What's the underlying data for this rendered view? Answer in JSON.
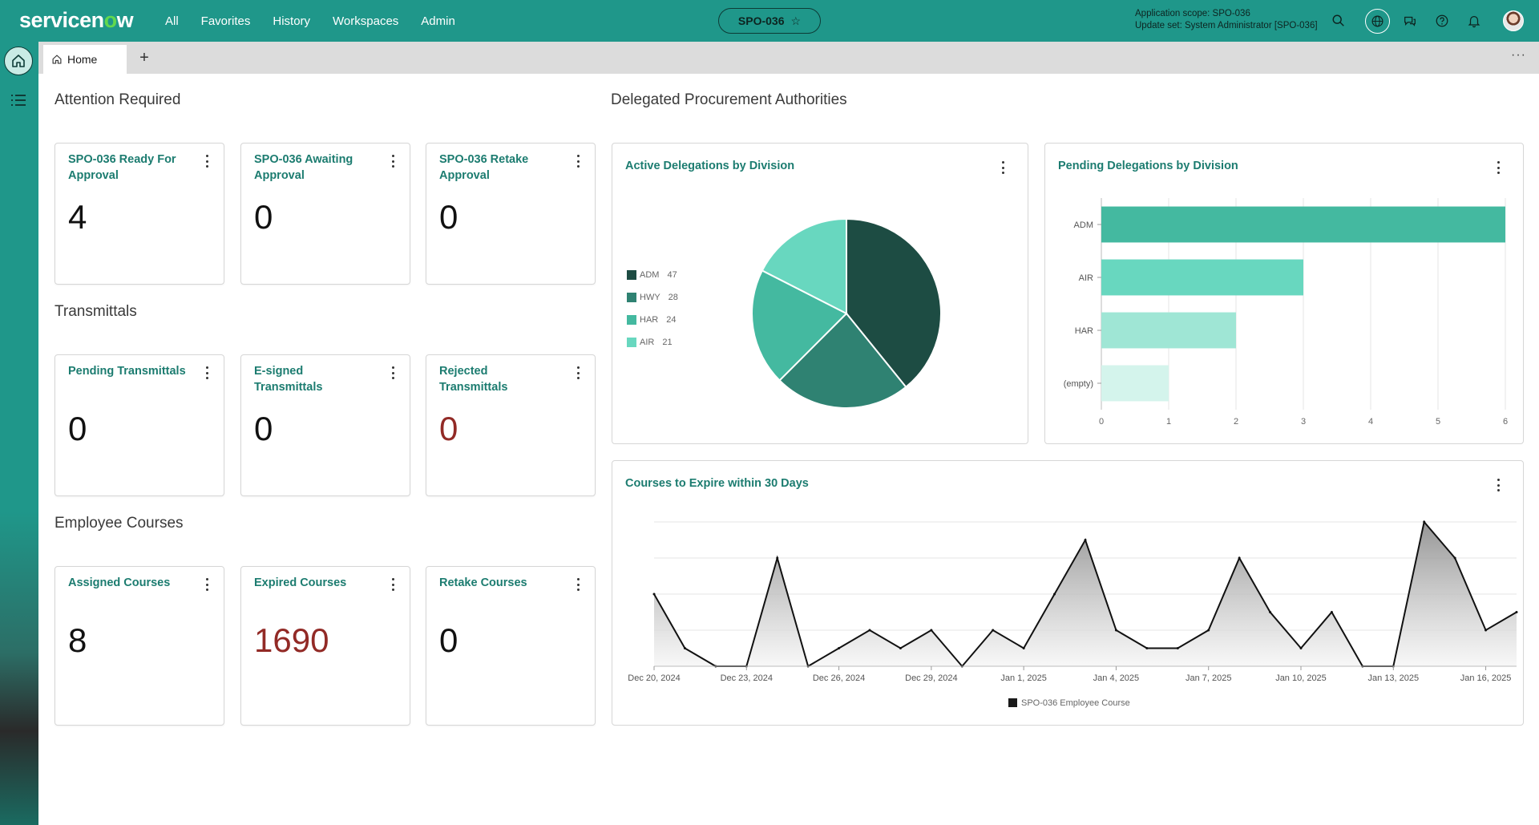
{
  "header": {
    "logo_text": "servicen",
    "logo_o": "o",
    "logo_suffix": "w",
    "nav": [
      "All",
      "Favorites",
      "History",
      "Workspaces",
      "Admin"
    ],
    "scope_pill": "SPO-036",
    "scope_line1": "Application scope: SPO-036",
    "scope_line2": "Update set: System Administrator [SPO-036]"
  },
  "tabs": {
    "home_label": "Home"
  },
  "sections": {
    "attention": "Attention Required",
    "transmittals": "Transmittals",
    "courses": "Employee Courses",
    "delegated": "Delegated Procurement Authorities"
  },
  "cards": [
    {
      "title": "SPO-036 Ready For Approval",
      "value": "4",
      "red": false
    },
    {
      "title": "SPO-036 Awaiting Approval",
      "value": "0",
      "red": false
    },
    {
      "title": "SPO-036 Retake Approval",
      "value": "0",
      "red": false
    },
    {
      "title": "Pending Transmittals",
      "value": "0",
      "red": false
    },
    {
      "title": "E-signed Transmittals",
      "value": "0",
      "red": false
    },
    {
      "title": "Rejected Transmittals",
      "value": "0",
      "red": true
    },
    {
      "title": "Assigned Courses",
      "value": "8",
      "red": false
    },
    {
      "title": "Expired Courses",
      "value": "1690",
      "red": true
    },
    {
      "title": "Retake Courses",
      "value": "0",
      "red": false
    }
  ],
  "colors": {
    "header": "#1f978a",
    "accent_text": "#1c7c70",
    "red_value": "#922a26"
  },
  "chart_data": [
    {
      "type": "pie",
      "title": "Active Delegations by Division",
      "categories": [
        "ADM",
        "HWY",
        "HAR",
        "AIR"
      ],
      "values": [
        47,
        28,
        24,
        21
      ],
      "colors": [
        "#1d4c43",
        "#2f8272",
        "#44b9a0",
        "#68d7bf"
      ],
      "legend": "left"
    },
    {
      "type": "bar",
      "orientation": "horizontal",
      "title": "Pending Delegations by Division",
      "categories": [
        "ADM",
        "AIR",
        "HAR",
        "(empty)"
      ],
      "values": [
        6,
        3,
        2,
        1
      ],
      "colors": [
        "#44b9a0",
        "#68d7bf",
        "#9fe6d5",
        "#d4f4ec"
      ],
      "xlim": [
        0,
        6
      ],
      "xticks": [
        "0",
        "1",
        "2",
        "3",
        "4",
        "5",
        "6"
      ],
      "grid": true
    },
    {
      "type": "area",
      "title": "Courses to Expire within 30 Days",
      "x": [
        "2024-12-20",
        "2024-12-21",
        "2024-12-22",
        "2024-12-23",
        "2024-12-24",
        "2024-12-25",
        "2024-12-26",
        "2024-12-27",
        "2024-12-28",
        "2024-12-29",
        "2024-12-30",
        "2024-12-31",
        "2025-01-01",
        "2025-01-02",
        "2025-01-03",
        "2025-01-04",
        "2025-01-05",
        "2025-01-06",
        "2025-01-07",
        "2025-01-08",
        "2025-01-09",
        "2025-01-10",
        "2025-01-11",
        "2025-01-12",
        "2025-01-13",
        "2025-01-14",
        "2025-01-15",
        "2025-01-16",
        "2025-01-17"
      ],
      "values": [
        4,
        1,
        0,
        0,
        6,
        0,
        1,
        2,
        1,
        2,
        0,
        2,
        1,
        4,
        7,
        2,
        1,
        1,
        2,
        6,
        3,
        1,
        3,
        0,
        0,
        8,
        6,
        2,
        3
      ],
      "series_name": "SPO-036 Employee Course",
      "xtick_labels": [
        "Dec 20, 2024",
        "Dec 23, 2024",
        "Dec 26, 2024",
        "Dec 29, 2024",
        "Jan 1, 2025",
        "Jan 4, 2025",
        "Jan 7, 2025",
        "Jan 10, 2025",
        "Jan 13, 2025",
        "Jan 16, 2025"
      ],
      "yticks": [
        "0",
        "2",
        "4",
        "6",
        "8"
      ],
      "ylim": [
        0,
        8
      ],
      "legend": "bottom-center",
      "grid": true
    }
  ]
}
